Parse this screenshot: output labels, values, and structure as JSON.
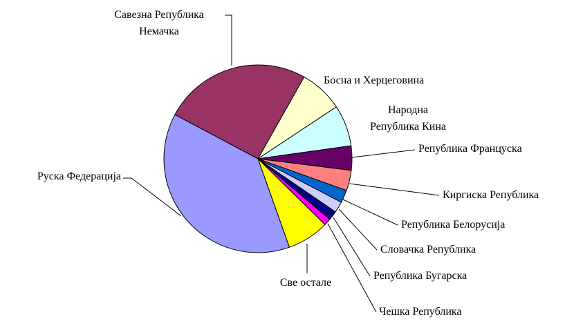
{
  "chart_data": {
    "type": "pie",
    "categories": [
      "Савезна Република\nНемачка",
      "Босна и Херцеговина",
      "Народна\nРепублика Кина",
      "Република Француска",
      "Киргиска Република",
      "Република Белорусија",
      "Словачка Република",
      "Република Бугарска",
      "Чешка Република",
      "Све остале",
      "Руска Федерација"
    ],
    "values": [
      25.4,
      7.5,
      7.1,
      4.2,
      3.5,
      2.2,
      1.9,
      1.6,
      1.2,
      7.2,
      38.2
    ],
    "colors": [
      "#993366",
      "#ffffcc",
      "#ccffff",
      "#660066",
      "#ff8080",
      "#0066cc",
      "#ccccff",
      "#000080",
      "#ff00ff",
      "#ffff00",
      "#9999ff"
    ]
  }
}
